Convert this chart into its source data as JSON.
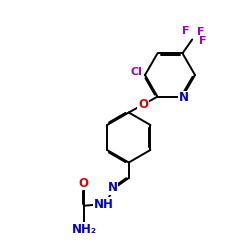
{
  "bg": "#ffffff",
  "bc": "#000000",
  "N_c": "#0000dd",
  "O_c": "#dd0000",
  "Cl_c": "#aa00bb",
  "F_c": "#aa00bb",
  "lw": 1.4,
  "dbo": 0.05,
  "fs": 8.0,
  "figsize": [
    2.5,
    2.5
  ],
  "dpi": 100,
  "xlim": [
    1.0,
    11.0
  ],
  "ylim": [
    0.5,
    10.5
  ]
}
